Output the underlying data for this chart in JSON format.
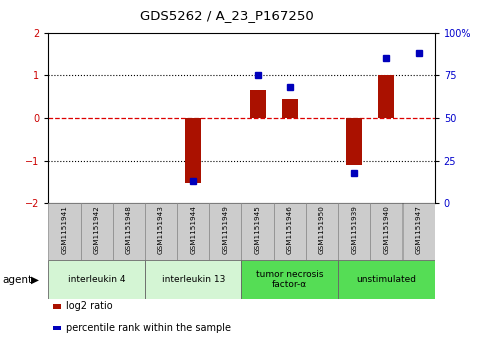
{
  "title": "GDS5262 / A_23_P167250",
  "samples": [
    "GSM1151941",
    "GSM1151942",
    "GSM1151948",
    "GSM1151943",
    "GSM1151944",
    "GSM1151949",
    "GSM1151945",
    "GSM1151946",
    "GSM1151950",
    "GSM1151939",
    "GSM1151940",
    "GSM1151947"
  ],
  "log2_ratio": [
    0,
    0,
    0,
    0,
    -1.52,
    0,
    0.65,
    0.45,
    0,
    -1.1,
    1.0,
    0
  ],
  "percentile": [
    null,
    null,
    null,
    null,
    13,
    null,
    75,
    68,
    null,
    18,
    85,
    88
  ],
  "ylim": [
    -2,
    2
  ],
  "yticks_left": [
    -2,
    -1,
    0,
    1,
    2
  ],
  "yticks_right": [
    0,
    25,
    50,
    75,
    100
  ],
  "bar_color": "#AA1100",
  "point_color": "#0000BB",
  "zero_line_color": "#DD0000",
  "dotted_line_color": "#000000",
  "group_spans": [
    [
      0,
      2,
      "interleukin 4",
      "#d4f5d4"
    ],
    [
      3,
      5,
      "interleukin 13",
      "#d4f5d4"
    ],
    [
      6,
      8,
      "tumor necrosis\nfactor-α",
      "#55dd55"
    ],
    [
      9,
      11,
      "unstimulated",
      "#55dd55"
    ]
  ],
  "legend_bar_label": "log2 ratio",
  "legend_point_label": "percentile rank within the sample",
  "bar_width": 0.5
}
